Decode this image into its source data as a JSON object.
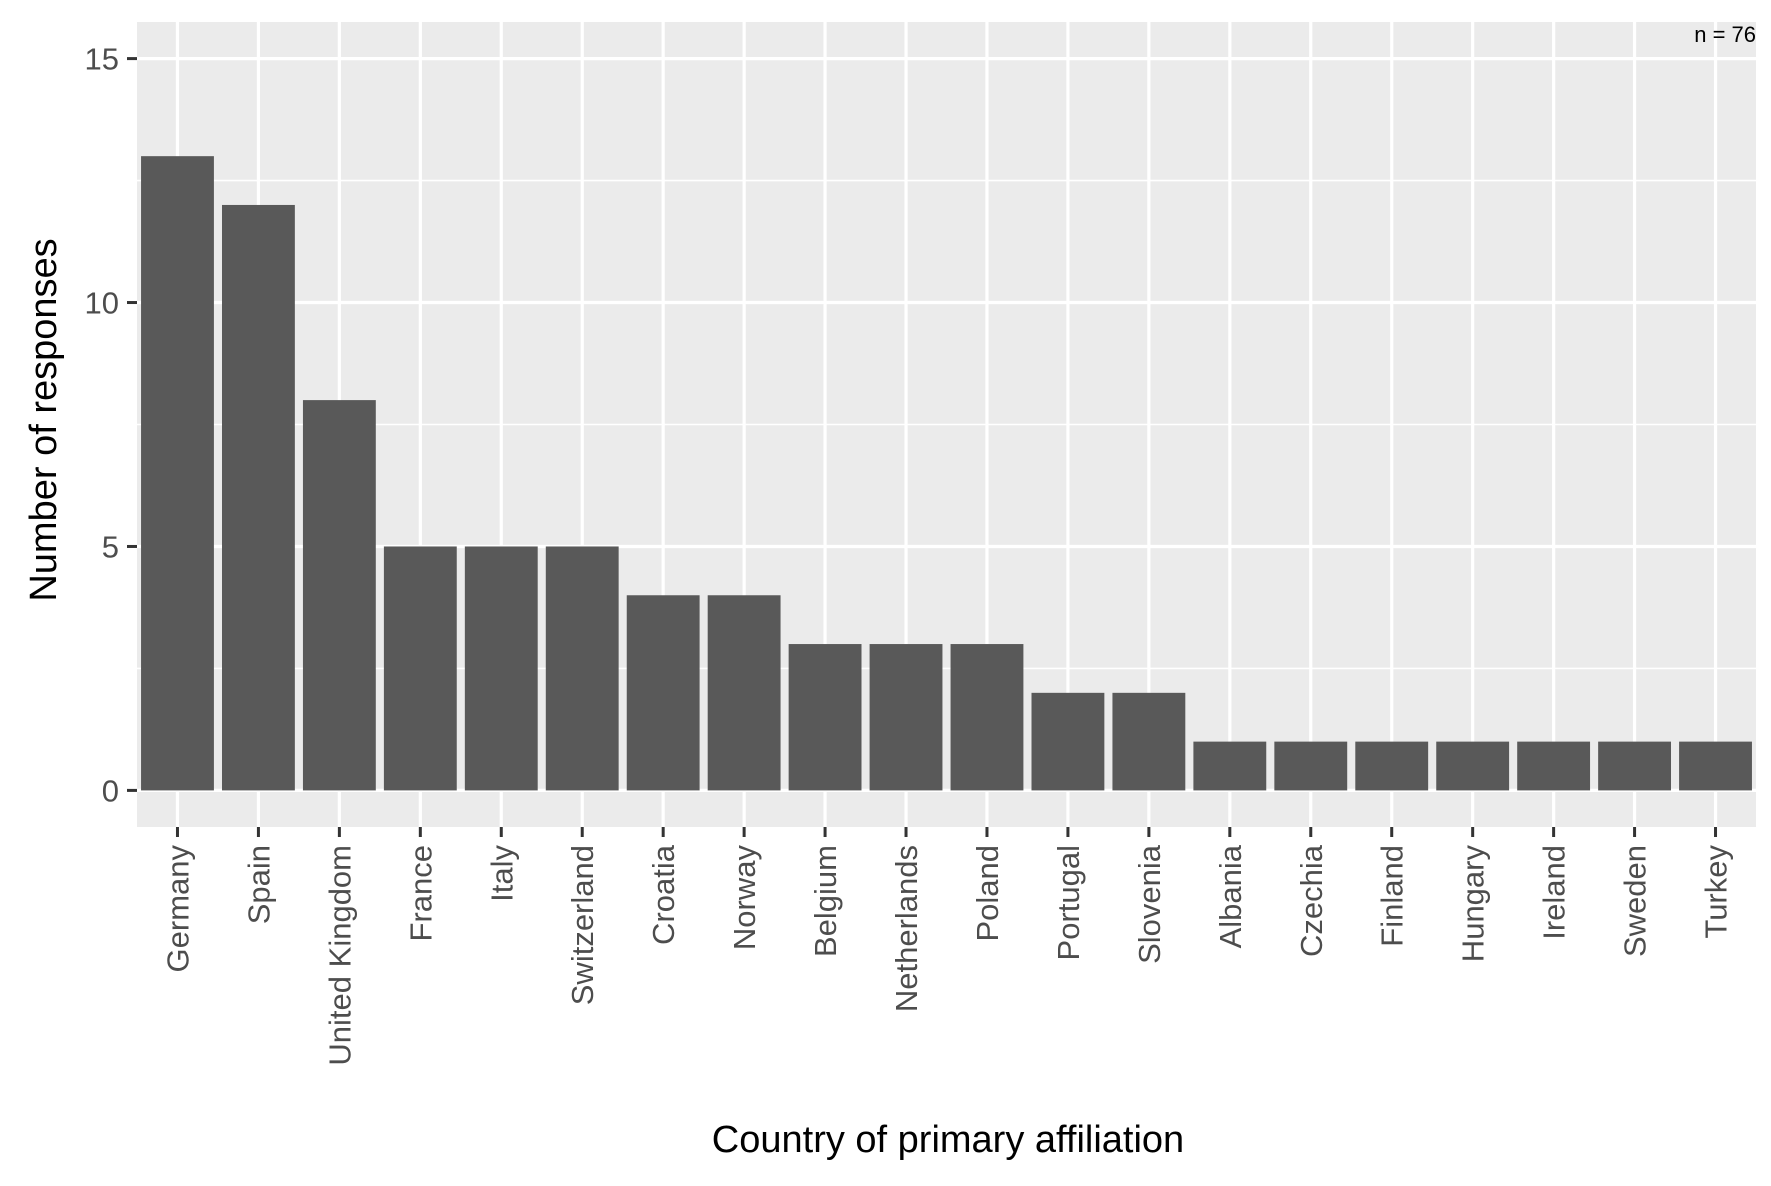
{
  "chart_data": {
    "type": "bar",
    "title": "",
    "xlabel": "Country of primary affiliation",
    "ylabel": "Number of responses",
    "annotation": "n = 76",
    "categories": [
      "Germany",
      "Spain",
      "United Kingdom",
      "France",
      "Italy",
      "Switzerland",
      "Croatia",
      "Norway",
      "Belgium",
      "Netherlands",
      "Poland",
      "Portugal",
      "Slovenia",
      "Albania",
      "Czechia",
      "Finland",
      "Hungary",
      "Ireland",
      "Sweden",
      "Turkey"
    ],
    "values": [
      13,
      12,
      8,
      5,
      5,
      5,
      4,
      4,
      3,
      3,
      3,
      2,
      2,
      1,
      1,
      1,
      1,
      1,
      1,
      1
    ],
    "yticks": [
      0,
      5,
      10,
      15
    ],
    "ylim": [
      -0.75,
      15.75
    ],
    "grid": true,
    "colors": {
      "panel": "#ebebeb",
      "grid": "#ffffff",
      "bar": "#595959",
      "tick_text": "#4d4d4d",
      "tick_mark": "#333333",
      "title_text": "#000000"
    }
  }
}
